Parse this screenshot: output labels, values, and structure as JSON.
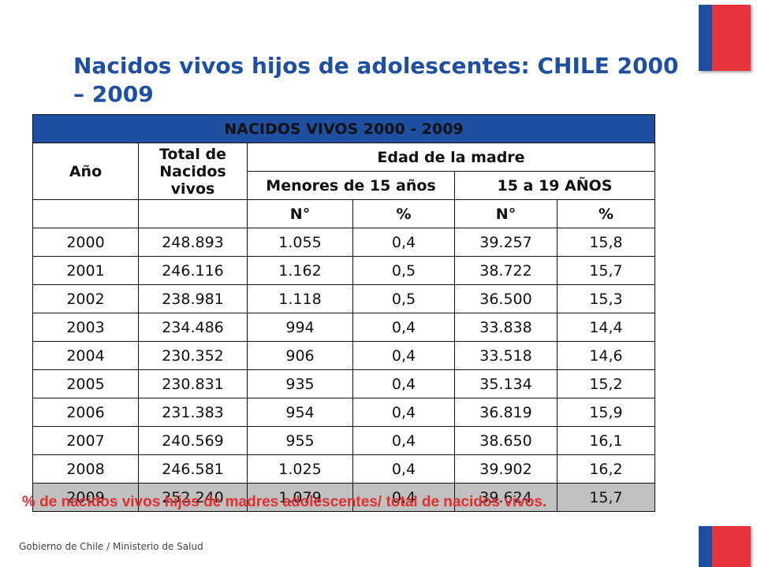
{
  "title": "Nacidos vivos hijos de adolescentes: CHILE 2000 – 2009",
  "table": {
    "main_header": "NACIDOS VIVOS  2000 - 2009",
    "col_year": "Año",
    "col_total": "Total de Nacidos vivos",
    "col_age_group": "Edad de la madre",
    "col_under15": "Menores de 15 años",
    "col_15to19": "15 a 19 AÑOS",
    "sub_n1": "N°",
    "sub_pct1": "%",
    "sub_n2": "N°",
    "sub_pct2": "%",
    "rows": [
      [
        "2000",
        "248.893",
        "1.055",
        "0,4",
        "39.257",
        "15,8"
      ],
      [
        "2001",
        "246.116",
        "1.162",
        "0,5",
        "38.722",
        "15,7"
      ],
      [
        "2002",
        "238.981",
        "1.118",
        "0,5",
        "36.500",
        "15,3"
      ],
      [
        "2003",
        "234.486",
        "994",
        "0,4",
        "33.838",
        "14,4"
      ],
      [
        "2004",
        "230.352",
        "906",
        "0,4",
        "33.518",
        "14,6"
      ],
      [
        "2005",
        "230.831",
        "935",
        "0,4",
        "35.134",
        "15,2"
      ],
      [
        "2006",
        "231.383",
        "954",
        "0,4",
        "36.819",
        "15,9"
      ],
      [
        "2007",
        "240.569",
        "955",
        "0,4",
        "38.650",
        "16,1"
      ],
      [
        "2008",
        "246.581",
        "1.025",
        "0,4",
        "39.902",
        "16,2"
      ],
      [
        "2009",
        "252.240",
        "1.079",
        "0,4",
        "39.624",
        "15,7"
      ]
    ]
  },
  "footnote": "% de nacidos vivos hijos de madres adolescentes/ total de nacidos vivos.",
  "footer": "Gobierno de Chile / Ministerio de Salud",
  "colors": {
    "title_blue": "#1f4fa0",
    "header_blue": "#1f4fa0",
    "flag_red": "#e8333a",
    "footnote_red": "#e03030"
  }
}
